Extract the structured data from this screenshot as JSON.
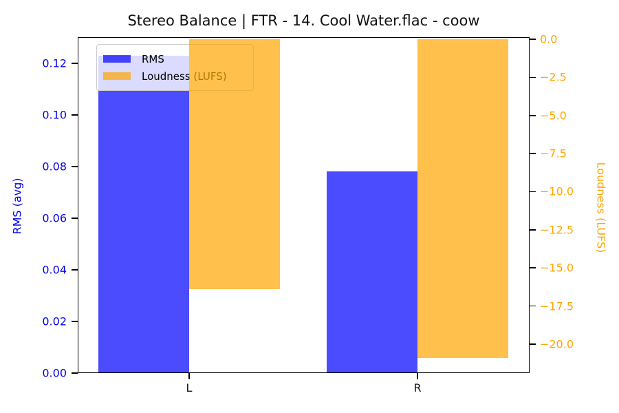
{
  "chart_data": {
    "type": "bar",
    "title": "Stereo Balance | FTR - 14. Cool Water.flac - coow",
    "categories": [
      "L",
      "R"
    ],
    "series": [
      {
        "name": "RMS",
        "axis": "left",
        "color": "rgba(0,0,255,0.7)",
        "values": [
          0.123,
          0.078
        ]
      },
      {
        "name": "Loudness (LUFS)",
        "axis": "right",
        "color": "rgba(255,165,0,0.7)",
        "values": [
          -16.4,
          -20.9
        ]
      }
    ],
    "left_axis": {
      "label": "RMS (avg)",
      "color": "#0202f0",
      "min": 0,
      "max": 0.1301,
      "tick_values": [
        0.0,
        0.02,
        0.04,
        0.06,
        0.08,
        0.1,
        0.12
      ],
      "tick_labels": [
        "0.00",
        "0.02",
        "0.04",
        "0.06",
        "0.08",
        "0.10",
        "0.12"
      ]
    },
    "right_axis": {
      "label": "Loudness (LUFS)",
      "color": "#ffa500",
      "min": -21.9,
      "max": 0.137,
      "tick_values": [
        0.0,
        -2.5,
        -5.0,
        -7.5,
        -10.0,
        -12.5,
        -15.0,
        -17.5,
        -20.0
      ],
      "tick_labels": [
        "0.0",
        "−2.5",
        "−5.0",
        "−7.5",
        "−10.0",
        "−12.5",
        "−15.0",
        "−17.5",
        "−20.0"
      ]
    },
    "legend": {
      "position": "upper-left",
      "entries": [
        "RMS",
        "Loudness (LUFS)"
      ]
    },
    "grid": false,
    "background_color": "#ffffff"
  }
}
